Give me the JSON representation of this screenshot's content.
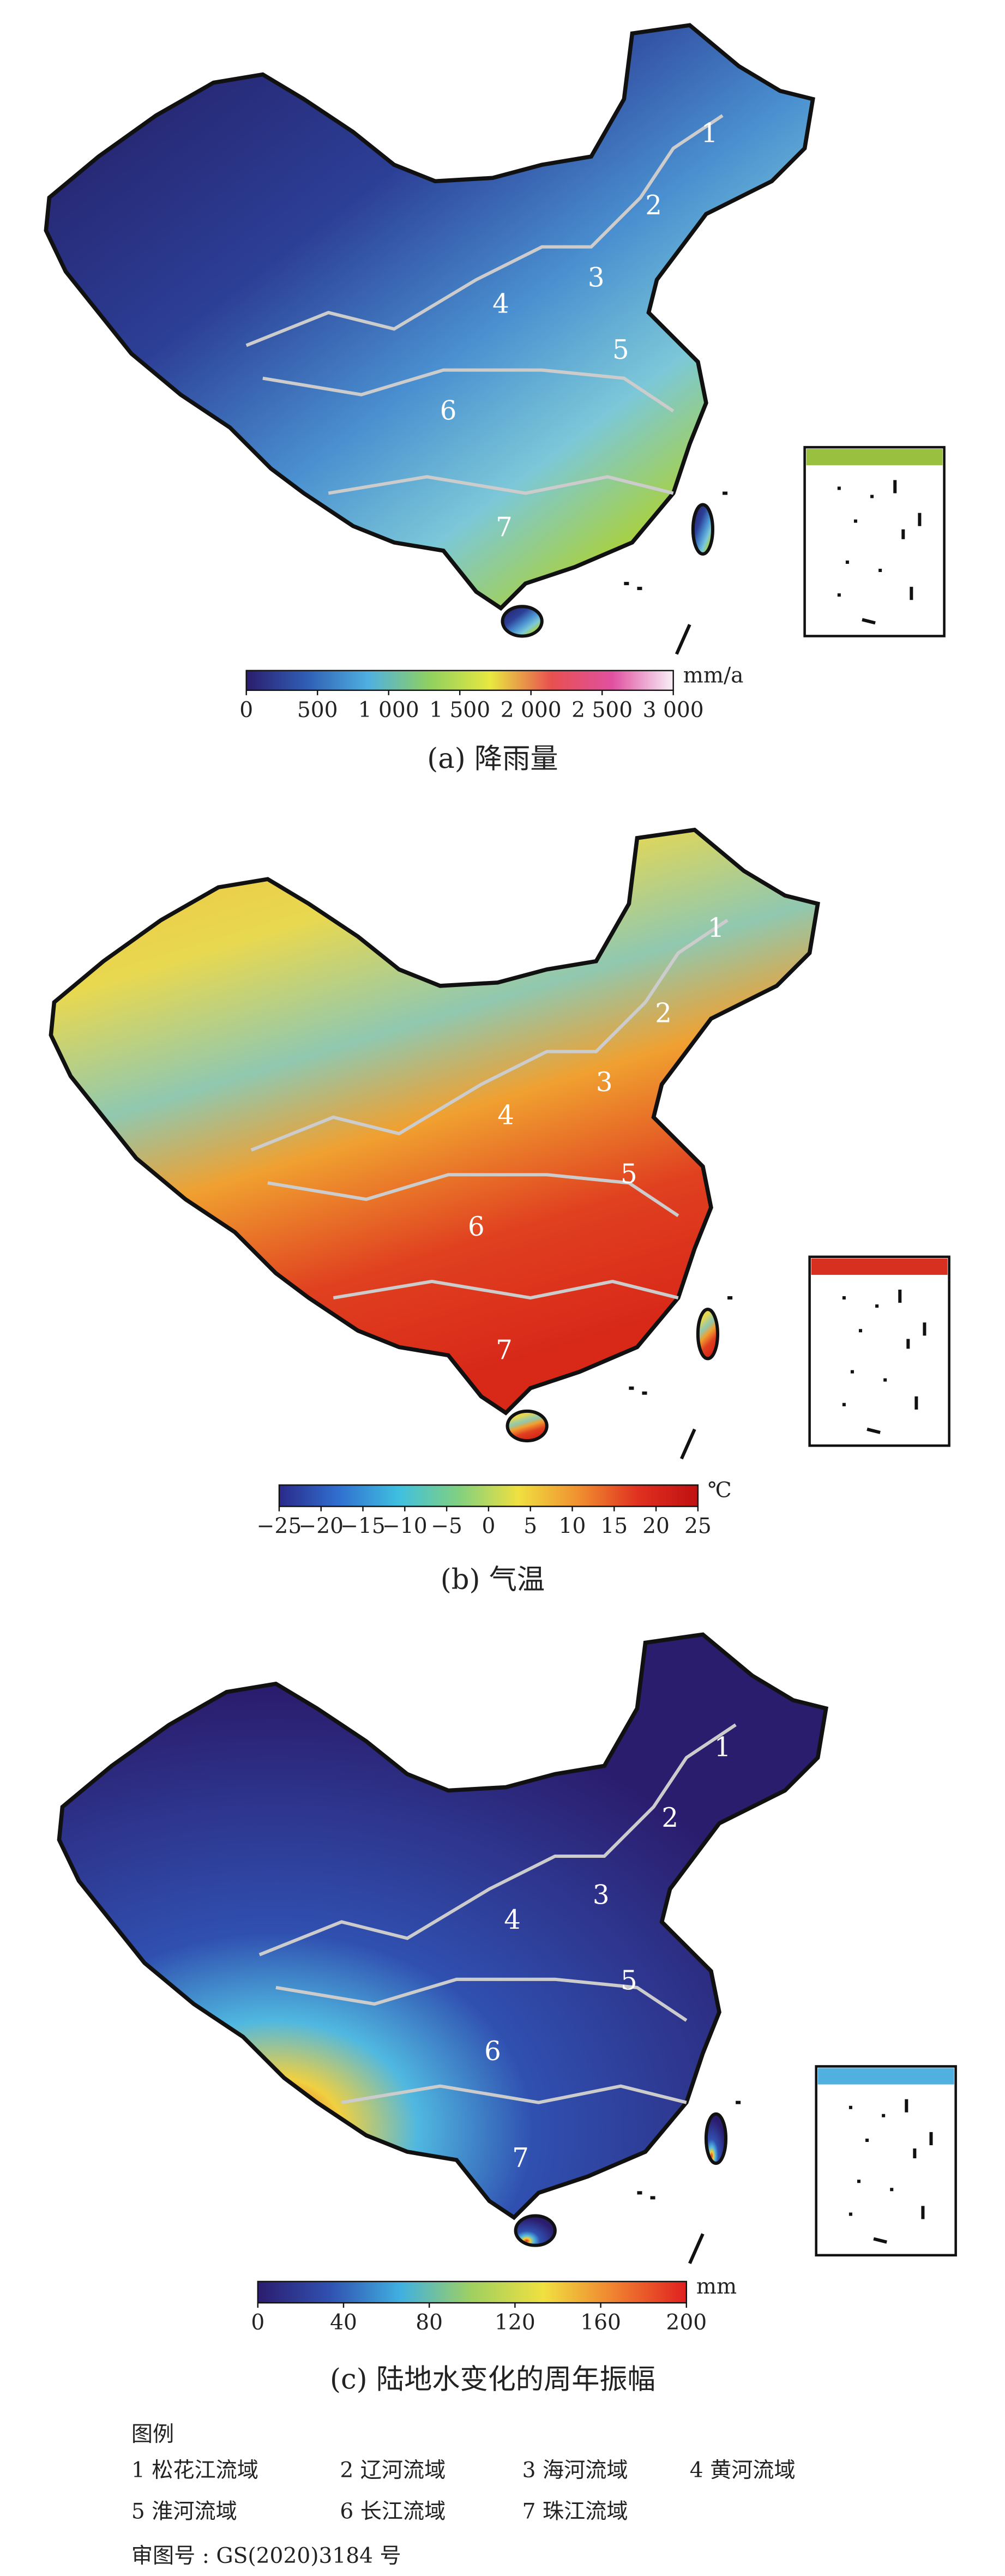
{
  "panels": [
    {
      "region_labels": [
        "1",
        "2",
        "3",
        "4",
        "5",
        "6",
        "7"
      ],
      "colorbar": {
        "lim": [
          0,
          3000
        ],
        "ticks": [
          0,
          500,
          {
            "value": 1000,
            "label": "1 000"
          },
          {
            "value": 1500,
            "label": "1 500"
          },
          {
            "value": 2000,
            "label": "2 000"
          },
          {
            "value": 2500,
            "label": "2 500"
          },
          {
            "value": 3000,
            "label": "3 000"
          }
        ],
        "unit": "mm/a",
        "colors": [
          "#2b1d6e",
          "#2f5fb5",
          "#4fb0e0",
          "#8fd060",
          "#e8e840",
          "#e85050",
          "#e050a0",
          "#f8f0f8"
        ]
      },
      "caption": "(a) 降雨量"
    },
    {
      "region_labels": [
        "1",
        "2",
        "3",
        "4",
        "5",
        "6",
        "7"
      ],
      "colorbar": {
        "lim": [
          -25,
          25
        ],
        "ticks": [
          {
            "value": -25,
            "label": "−25"
          },
          {
            "value": -20,
            "label": "−20"
          },
          {
            "value": -15,
            "label": "−15"
          },
          {
            "value": -10,
            "label": "−10"
          },
          {
            "value": -5,
            "label": "−5"
          },
          0,
          5,
          10,
          15,
          20,
          25
        ],
        "unit": "℃",
        "colors": [
          "#2a2a8a",
          "#3070d0",
          "#40c0e0",
          "#80d080",
          "#f0e040",
          "#f09030",
          "#e03020",
          "#c01010"
        ]
      },
      "caption": "(b) 气温"
    },
    {
      "region_labels": [
        "1",
        "2",
        "3",
        "4",
        "5",
        "6",
        "7"
      ],
      "colorbar": {
        "lim": [
          0,
          200
        ],
        "ticks": [
          0,
          40,
          80,
          120,
          160,
          200
        ],
        "unit": "mm",
        "colors": [
          "#2b1d6e",
          "#3050b0",
          "#40b0e0",
          "#a0d060",
          "#f0e040",
          "#f08030",
          "#e02020"
        ]
      },
      "caption": "(c) 陆地水变化的周年振幅"
    }
  ],
  "legend": {
    "title": "图例",
    "items": [
      "1 松花江流域",
      "2 辽河流域",
      "3 海河流域",
      "4 黄河流域",
      "5 淮河流域",
      "6 长江流域",
      "7 珠江流域"
    ]
  },
  "approval": "审图号 : GS(2020)3184 号"
}
